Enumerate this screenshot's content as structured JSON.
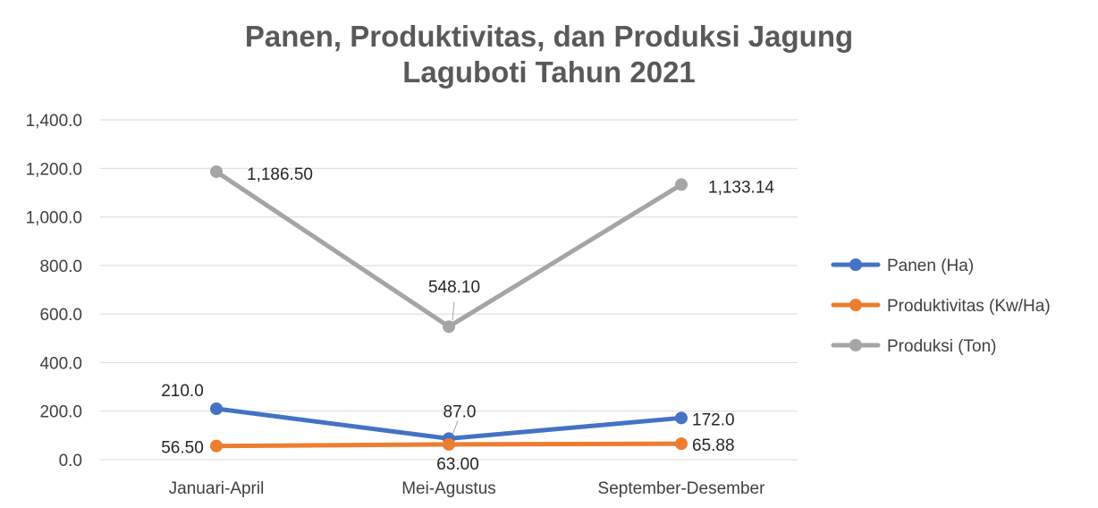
{
  "chart_data": {
    "type": "line",
    "title_lines": [
      "Panen, Produktivitas, dan Produksi Jagung",
      "Laguboti Tahun 2021"
    ],
    "categories": [
      "Januari-April",
      "Mei-Agustus",
      "September-Desember"
    ],
    "ylim": [
      0,
      1400
    ],
    "y_ticks": [
      "0.0",
      "200.0",
      "400.0",
      "600.0",
      "800.0",
      "1,000.0",
      "1,200.0",
      "1,400.0"
    ],
    "grid": true,
    "legend_position": "right",
    "series": [
      {
        "name": "Panen (Ha)",
        "color": "#4472C4",
        "values": [
          210,
          87,
          172
        ],
        "labels": [
          "210.0",
          "87.0",
          "172.0"
        ]
      },
      {
        "name": "Produktivitas (Kw/Ha)",
        "color": "#ED7D31",
        "values": [
          56.5,
          63,
          65.88
        ],
        "labels": [
          "56.50",
          "63.00",
          "65.88"
        ]
      },
      {
        "name": "Produksi (Ton)",
        "color": "#A5A5A5",
        "values": [
          1186.5,
          548.1,
          1133.14
        ],
        "labels": [
          "1,186.50",
          "548.10",
          "1,133.14"
        ]
      }
    ]
  }
}
